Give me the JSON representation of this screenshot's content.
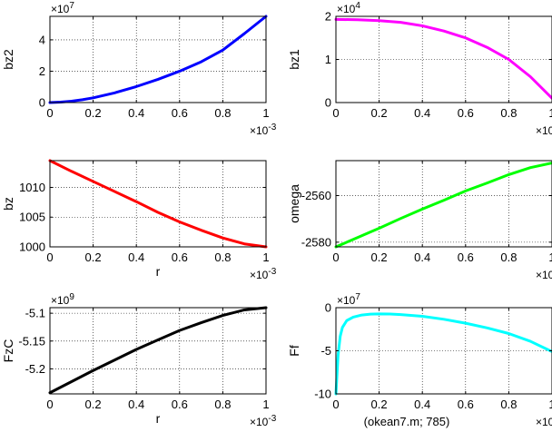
{
  "figure_note": "(okean7.m;    785)",
  "chart_data": [
    {
      "id": "p1",
      "type": "line",
      "ylabel": "bz2",
      "xlabel": "",
      "xlim": [
        0,
        1
      ],
      "ylim": [
        0,
        5.5
      ],
      "x_exponent": "-3",
      "y_exponent": "7",
      "xticks": [
        "0",
        "0.2",
        "0.4",
        "0.6",
        "0.8",
        "1"
      ],
      "yticks": [
        {
          "v": 0,
          "t": "0"
        },
        {
          "v": 2,
          "t": "2"
        },
        {
          "v": 4,
          "t": "4"
        }
      ],
      "grid": true,
      "color": "#0000ff",
      "series": [
        {
          "x": [
            0,
            0.05,
            0.1,
            0.15,
            0.2,
            0.3,
            0.4,
            0.5,
            0.6,
            0.7,
            0.8,
            0.9,
            1.0
          ],
          "y": [
            0,
            0.03,
            0.09,
            0.18,
            0.3,
            0.62,
            1.02,
            1.48,
            2.0,
            2.6,
            3.35,
            4.4,
            5.5
          ]
        }
      ]
    },
    {
      "id": "p2",
      "type": "line",
      "ylabel": "bz1",
      "xlabel": "",
      "xlim": [
        0,
        1
      ],
      "ylim": [
        0,
        2
      ],
      "x_exponent": "-3",
      "y_exponent": "4",
      "xticks": [
        "0",
        "0.2",
        "0.4",
        "0.6",
        "0.8",
        "1"
      ],
      "yticks": [
        {
          "v": 0,
          "t": "0"
        },
        {
          "v": 1,
          "t": "1"
        },
        {
          "v": 2,
          "t": "2"
        }
      ],
      "grid": true,
      "color": "#ff00ff",
      "series": [
        {
          "x": [
            0,
            0.1,
            0.2,
            0.3,
            0.4,
            0.5,
            0.6,
            0.7,
            0.8,
            0.9,
            1.0
          ],
          "y": [
            1.93,
            1.92,
            1.9,
            1.86,
            1.78,
            1.66,
            1.5,
            1.28,
            1.0,
            0.6,
            0.1
          ]
        }
      ]
    },
    {
      "id": "p3",
      "type": "line",
      "ylabel": "bz",
      "xlabel": "r",
      "xlim": [
        0,
        1
      ],
      "ylim": [
        1000,
        1014.5
      ],
      "x_exponent": "-3",
      "y_exponent": "",
      "xticks": [
        "0",
        "0.2",
        "0.4",
        "0.6",
        "0.8",
        "1"
      ],
      "yticks": [
        {
          "v": 1000,
          "t": "1000"
        },
        {
          "v": 1005,
          "t": "1005"
        },
        {
          "v": 1010,
          "t": "1010"
        }
      ],
      "grid": true,
      "color": "#ff0000",
      "series": [
        {
          "x": [
            0,
            0.1,
            0.2,
            0.3,
            0.4,
            0.5,
            0.6,
            0.7,
            0.8,
            0.9,
            1.0
          ],
          "y": [
            1014.5,
            1012.7,
            1011.0,
            1009.3,
            1007.6,
            1005.8,
            1004.2,
            1002.8,
            1001.5,
            1000.5,
            1000.0
          ]
        }
      ]
    },
    {
      "id": "p4",
      "type": "line",
      "ylabel": "omega",
      "xlabel": "",
      "xlim": [
        0,
        1
      ],
      "ylim": [
        -2582,
        -2545
      ],
      "x_exponent": "-3",
      "y_exponent": "",
      "xticks": [
        "0",
        "0.2",
        "0.4",
        "0.6",
        "0.8",
        "1"
      ],
      "yticks": [
        {
          "v": -2580,
          "t": "-2580"
        },
        {
          "v": -2560,
          "t": "-2560"
        }
      ],
      "grid": true,
      "color": "#00ff00",
      "series": [
        {
          "x": [
            0,
            0.1,
            0.2,
            0.3,
            0.4,
            0.5,
            0.6,
            0.7,
            0.8,
            0.9,
            1.0
          ],
          "y": [
            -2582,
            -2578,
            -2574,
            -2569.8,
            -2565.8,
            -2562,
            -2558,
            -2554.6,
            -2551,
            -2548,
            -2546
          ]
        }
      ]
    },
    {
      "id": "p5",
      "type": "line",
      "ylabel": "FzC",
      "xlabel": "r",
      "xlim": [
        0,
        1
      ],
      "ylim": [
        -5.245,
        -5.09
      ],
      "x_exponent": "-3",
      "y_exponent": "9",
      "xticks": [
        "0",
        "0.2",
        "0.4",
        "0.6",
        "0.8",
        "1"
      ],
      "yticks": [
        {
          "v": -5.2,
          "t": "-5.2"
        },
        {
          "v": -5.15,
          "t": "-5.15"
        },
        {
          "v": -5.1,
          "t": "-5.1"
        }
      ],
      "grid": true,
      "color": "#000000",
      "series": [
        {
          "x": [
            0,
            0.1,
            0.2,
            0.3,
            0.4,
            0.5,
            0.6,
            0.7,
            0.8,
            0.9,
            1.0
          ],
          "y": [
            -5.243,
            -5.223,
            -5.203,
            -5.184,
            -5.165,
            -5.148,
            -5.131,
            -5.117,
            -5.104,
            -5.094,
            -5.09
          ]
        }
      ]
    },
    {
      "id": "p6",
      "type": "line",
      "ylabel": "Ff",
      "xlabel": "",
      "xlim": [
        0,
        1
      ],
      "ylim": [
        -10,
        0
      ],
      "x_exponent": "-3",
      "y_exponent": "7",
      "xticks": [
        "0",
        "0.2",
        "0.4",
        "0.6",
        "0.8",
        "1"
      ],
      "yticks": [
        {
          "v": -10,
          "t": "-10"
        },
        {
          "v": -5,
          "t": "-5"
        },
        {
          "v": 0,
          "t": "0"
        }
      ],
      "grid": true,
      "color": "#00ffff",
      "series": [
        {
          "x": [
            0.0,
            0.01,
            0.02,
            0.03,
            0.05,
            0.08,
            0.12,
            0.16,
            0.2,
            0.25,
            0.3,
            0.4,
            0.5,
            0.6,
            0.7,
            0.8,
            0.9,
            1.0
          ],
          "y": [
            -10,
            -5.5,
            -3.3,
            -2.3,
            -1.5,
            -1.1,
            -0.85,
            -0.75,
            -0.72,
            -0.74,
            -0.8,
            -1.0,
            -1.35,
            -1.8,
            -2.35,
            -3.0,
            -3.9,
            -5.1
          ]
        }
      ]
    }
  ]
}
